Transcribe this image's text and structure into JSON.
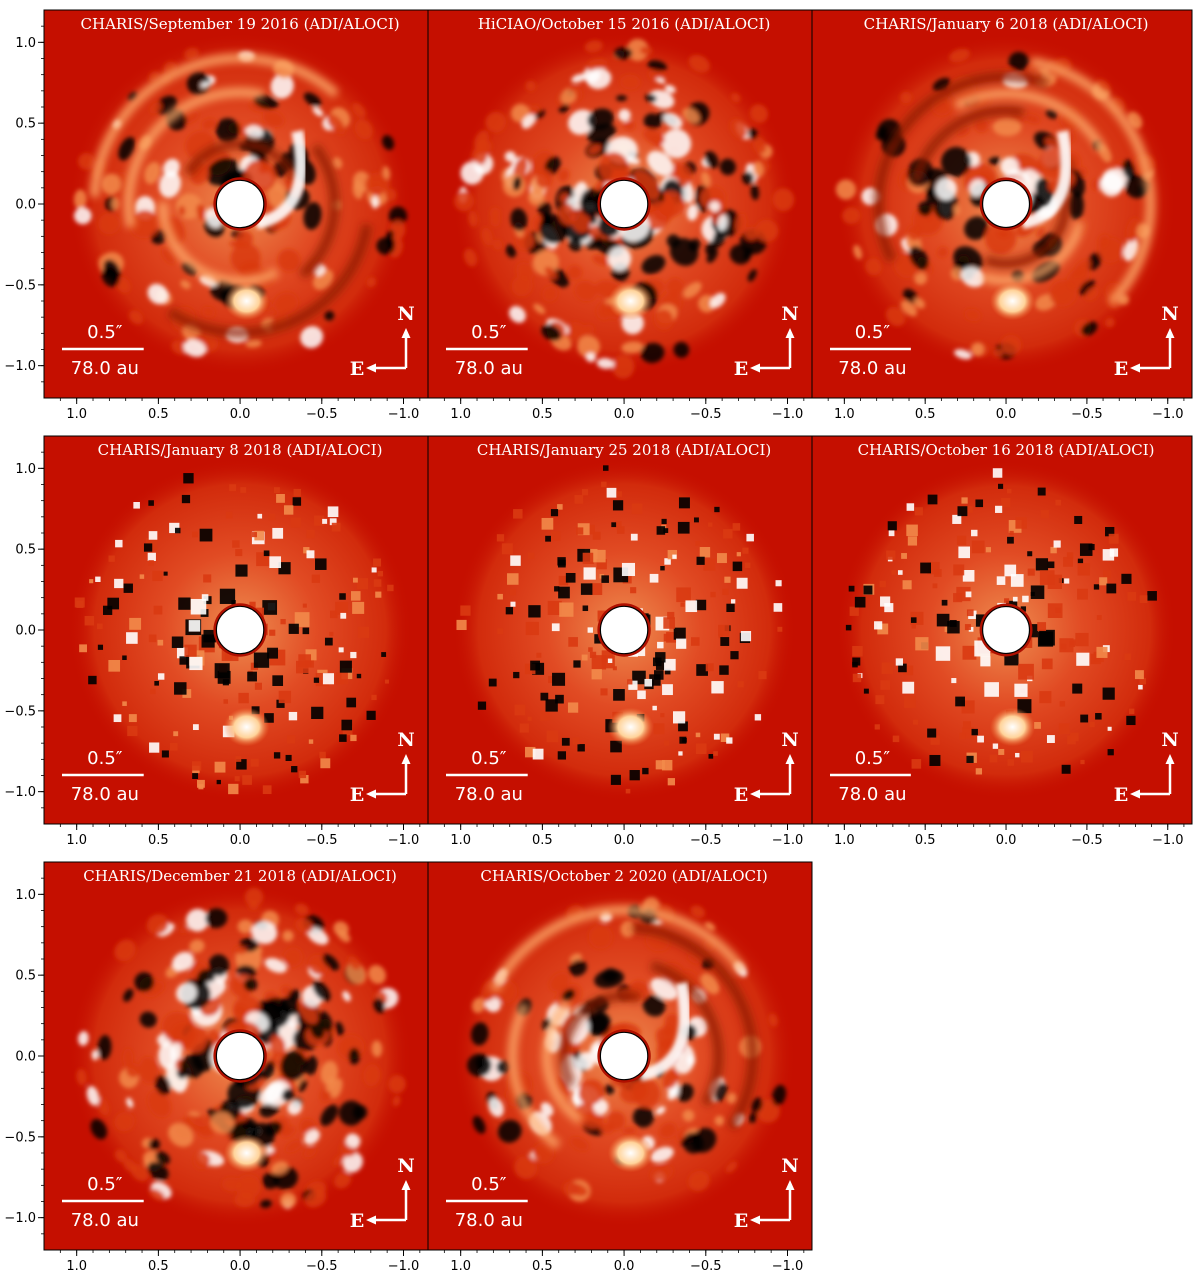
{
  "figure": {
    "panels": [
      {
        "title": "CHARIS/September 19 2016 (ADI/ALOCI)",
        "style": "smooth-spiral"
      },
      {
        "title": "HiCIAO/October 15 2016 (ADI/ALOCI)",
        "style": "noisy"
      },
      {
        "title": "CHARIS/January 6 2018 (ADI/ALOCI)",
        "style": "smooth"
      },
      {
        "title": "CHARIS/January 8 2018 (ADI/ALOCI)",
        "style": "pixelated"
      },
      {
        "title": "CHARIS/January 25 2018 (ADI/ALOCI)",
        "style": "pixelated"
      },
      {
        "title": "CHARIS/October 16 2018 (ADI/ALOCI)",
        "style": "pixelated"
      },
      {
        "title": "CHARIS/December 21 2018 (ADI/ALOCI)",
        "style": "noisy"
      },
      {
        "title": "CHARIS/October 2 2020 (ADI/ALOCI)",
        "style": "smooth-spiral"
      }
    ],
    "x_ticks": [
      "1.0",
      "0.5",
      "0.0",
      "−0.5",
      "−1.0"
    ],
    "y_ticks": [
      "1.0",
      "0.5",
      "0.0",
      "−0.5",
      "−1.0"
    ],
    "scale_bar": {
      "angular": "0.5″",
      "physical": "78.0 au"
    },
    "compass": {
      "north": "N",
      "east": "E"
    },
    "colors": {
      "background": "#c50f00",
      "bright": "#ffffff",
      "dark": "#000000"
    }
  }
}
